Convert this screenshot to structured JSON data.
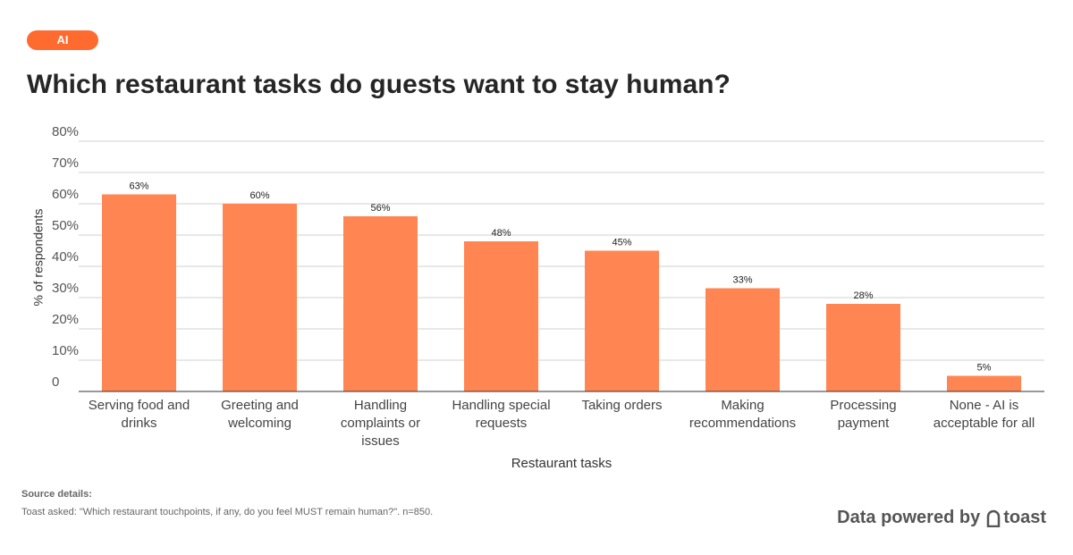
{
  "tag": "AI",
  "chart_data": {
    "type": "bar",
    "title": "Which restaurant tasks do guests want to stay human?",
    "y_label": "% of respondents",
    "x_label": "Restaurant tasks",
    "categories": [
      "Serving food and drinks",
      "Greeting and welcoming",
      "Handling complaints or issues",
      "Handling special requests",
      "Taking orders",
      "Making recommendations",
      "Processing payment",
      "None - AI is acceptable for all"
    ],
    "values": [
      63,
      60,
      56,
      48,
      45,
      33,
      28,
      5
    ],
    "value_labels": [
      "63%",
      "60%",
      "56%",
      "48%",
      "45%",
      "33%",
      "28%",
      "5%"
    ],
    "color": "#ff8652",
    "ylim": [
      0,
      80
    ],
    "yticks": [
      0,
      {
        "value": 10,
        "label": "10%"
      },
      {
        "value": 20,
        "label": "20%"
      },
      {
        "value": 30,
        "label": "30%"
      },
      {
        "value": 40,
        "label": "40%"
      },
      {
        "value": 50,
        "label": "50%"
      },
      {
        "value": 60,
        "label": "60%"
      },
      {
        "value": 70,
        "label": "70%"
      },
      {
        "value": 80,
        "label": "80%"
      }
    ],
    "grid": true
  },
  "source": {
    "heading": "Source details:",
    "text": "Toast asked: \"Which restaurant touchpoints, if any, do you feel MUST remain human?\". n=850."
  },
  "footer": {
    "text": "Data powered by",
    "brand": "toast"
  }
}
